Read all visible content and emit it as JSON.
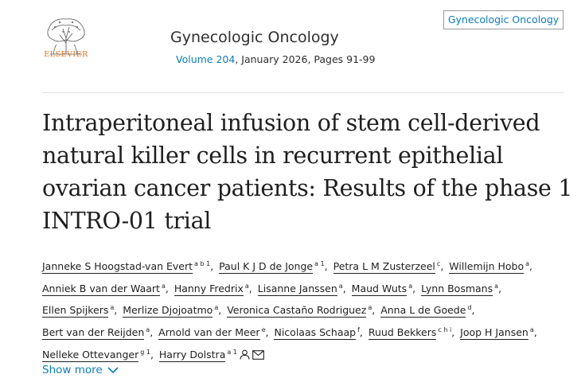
{
  "publisher": {
    "logo_text": "ELSEVIER"
  },
  "journal": {
    "title": "Gynecologic Oncology",
    "volume_link": "Volume 204",
    "issue_rest": ", January 2026, Pages 91-99",
    "box_label": "Gynecologic Oncology"
  },
  "article": {
    "title": "Intraperitoneal infusion of stem cell-derived natural killer cells in recurrent epithelial ovarian cancer patients: Results of the phase 1 INTRO-01 trial"
  },
  "authors": [
    {
      "name": "Janneke S Hoogstad-van Evert",
      "aff": "a b 1"
    },
    {
      "name": "Paul K J D de Jonge",
      "aff": "a 1"
    },
    {
      "name": "Petra L M Zusterzeel",
      "aff": "c"
    },
    {
      "name": "Willemijn Hobo",
      "aff": "a"
    },
    {
      "name": "Anniek B van der Waart",
      "aff": "a"
    },
    {
      "name": "Hanny Fredrix",
      "aff": "a"
    },
    {
      "name": "Lisanne Janssen",
      "aff": "a"
    },
    {
      "name": "Maud Wuts",
      "aff": "a"
    },
    {
      "name": "Lynn Bosmans",
      "aff": "a"
    },
    {
      "name": "Ellen Spijkers",
      "aff": "a"
    },
    {
      "name": "Merlize Djojoatmo",
      "aff": "a"
    },
    {
      "name": "Veronica Castaño Rodriguez",
      "aff": "a"
    },
    {
      "name": "Anna L de Goede",
      "aff": "d"
    },
    {
      "name": "Bert van der Reijden",
      "aff": "a"
    },
    {
      "name": "Arnold van der Meer",
      "aff": "e"
    },
    {
      "name": "Nicolaas Schaap",
      "aff": "f"
    },
    {
      "name": "Ruud Bekkers",
      "aff": "c h i"
    },
    {
      "name": "Joop H Jansen",
      "aff": "a"
    },
    {
      "name": "Nelleke Ottevanger",
      "aff": "g 1"
    },
    {
      "name": "Harry Dolstra",
      "aff": "a 1"
    }
  ],
  "icons": {
    "person": "person-icon",
    "mail": "mail-icon",
    "chevron": "chevron-down-icon"
  },
  "show_more": {
    "label": "Show more"
  },
  "colors": {
    "link": "#0c7dbb",
    "elsevier_orange": "#e9711c"
  }
}
